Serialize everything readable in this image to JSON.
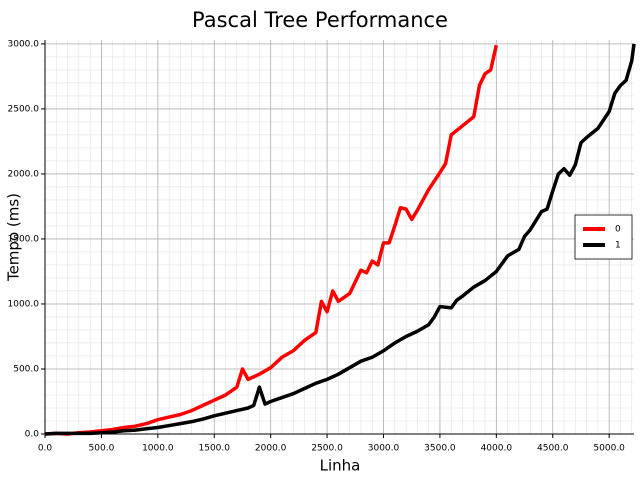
{
  "chart_data": {
    "type": "line",
    "title": "Pascal Tree Performance",
    "x_label": "Linha",
    "y_label": "Tempo (ms)",
    "xlim": [
      0,
      5220
    ],
    "ylim": [
      0,
      3030
    ],
    "xticks": [
      {
        "value": 0,
        "label": "0.0"
      },
      {
        "value": 500,
        "label": "500.0"
      },
      {
        "value": 1000,
        "label": "1000.0"
      },
      {
        "value": 1500,
        "label": "1500.0"
      },
      {
        "value": 2000,
        "label": "2000.0"
      },
      {
        "value": 2500,
        "label": "2500.0"
      },
      {
        "value": 3000,
        "label": "3000.0"
      },
      {
        "value": 3500,
        "label": "3500.0"
      },
      {
        "value": 4000,
        "label": "4000.0"
      },
      {
        "value": 4500,
        "label": "4500.0"
      },
      {
        "value": 5000,
        "label": "5000.0"
      }
    ],
    "yticks": [
      {
        "value": 0,
        "label": "0.0"
      },
      {
        "value": 500,
        "label": "500.0"
      },
      {
        "value": 1000,
        "label": "1000.0"
      },
      {
        "value": 1500,
        "label": "1500.0"
      },
      {
        "value": 2000,
        "label": "2000.0"
      },
      {
        "value": 2500,
        "label": "2500.0"
      },
      {
        "value": 3000,
        "label": "3000.0"
      }
    ],
    "grid": true,
    "minor_grid": true,
    "legend": "center right",
    "series": [
      {
        "name": "0",
        "color": "#ff0000",
        "x": [
          0,
          100,
          200,
          300,
          400,
          500,
          600,
          700,
          800,
          900,
          1000,
          1100,
          1200,
          1300,
          1400,
          1500,
          1600,
          1700,
          1750,
          1800,
          1900,
          2000,
          2100,
          2200,
          2300,
          2400,
          2450,
          2500,
          2550,
          2600,
          2700,
          2800,
          2850,
          2900,
          2950,
          3000,
          3050,
          3100,
          3150,
          3200,
          3250,
          3300,
          3400,
          3500,
          3550,
          3600,
          3700,
          3800,
          3850,
          3900,
          3950,
          4000
        ],
        "values": [
          0,
          5,
          0,
          10,
          15,
          25,
          35,
          50,
          60,
          80,
          110,
          130,
          150,
          180,
          220,
          260,
          300,
          360,
          500,
          420,
          460,
          510,
          590,
          640,
          720,
          780,
          1020,
          940,
          1100,
          1020,
          1080,
          1260,
          1240,
          1330,
          1300,
          1470,
          1470,
          1600,
          1740,
          1730,
          1650,
          1720,
          1880,
          2010,
          2080,
          2300,
          2370,
          2440,
          2680,
          2770,
          2800,
          2990
        ]
      },
      {
        "name": "1",
        "color": "#000000",
        "x": [
          0,
          100,
          200,
          300,
          400,
          500,
          600,
          700,
          800,
          900,
          1000,
          1100,
          1200,
          1300,
          1400,
          1500,
          1600,
          1700,
          1800,
          1850,
          1900,
          1950,
          2000,
          2100,
          2200,
          2300,
          2400,
          2500,
          2600,
          2700,
          2800,
          2900,
          3000,
          3100,
          3200,
          3300,
          3400,
          3450,
          3500,
          3600,
          3650,
          3700,
          3800,
          3900,
          4000,
          4100,
          4200,
          4250,
          4300,
          4400,
          4450,
          4500,
          4550,
          4600,
          4650,
          4700,
          4750,
          4800,
          4900,
          5000,
          5050,
          5100,
          5150,
          5200,
          5220
        ],
        "values": [
          0,
          5,
          5,
          5,
          5,
          10,
          15,
          25,
          30,
          40,
          50,
          65,
          80,
          95,
          115,
          140,
          160,
          180,
          200,
          220,
          360,
          230,
          250,
          280,
          310,
          350,
          390,
          420,
          460,
          510,
          560,
          590,
          640,
          700,
          750,
          790,
          840,
          900,
          980,
          970,
          1030,
          1060,
          1130,
          1180,
          1250,
          1370,
          1420,
          1520,
          1570,
          1710,
          1730,
          1870,
          2000,
          2040,
          1990,
          2070,
          2240,
          2280,
          2350,
          2480,
          2620,
          2680,
          2720,
          2870,
          3000
        ]
      }
    ]
  }
}
